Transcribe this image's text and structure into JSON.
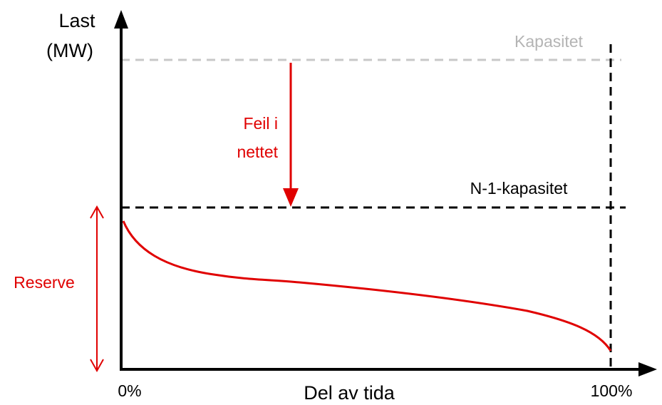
{
  "y_axis": {
    "label_line1": "Last",
    "label_line2": "(MW)"
  },
  "x_axis": {
    "label": "Del av tida",
    "start": "0%",
    "end": "100%"
  },
  "lines": {
    "capacity": "Kapasitet",
    "n1_capacity": "N-1-kapasitet"
  },
  "fault": {
    "line1": "Feil i",
    "line2": "nettet"
  },
  "reserve": "Reserve"
}
